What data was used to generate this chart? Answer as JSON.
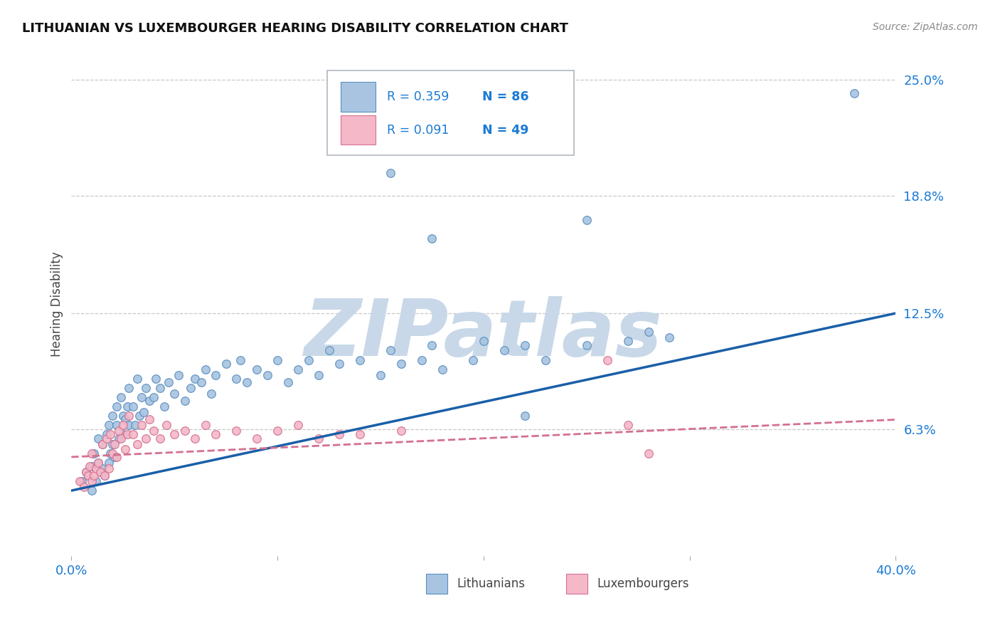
{
  "title": "LITHUANIAN VS LUXEMBOURGER HEARING DISABILITY CORRELATION CHART",
  "source": "Source: ZipAtlas.com",
  "ylabel": "Hearing Disability",
  "xlim": [
    0.0,
    0.4
  ],
  "ylim": [
    -0.005,
    0.265
  ],
  "xticks": [
    0.0,
    0.1,
    0.2,
    0.3,
    0.4
  ],
  "xticklabels": [
    "0.0%",
    "",
    "",
    "",
    "40.0%"
  ],
  "ytick_labels_right": [
    "25.0%",
    "18.8%",
    "12.5%",
    "6.3%"
  ],
  "ytick_vals_right": [
    0.25,
    0.188,
    0.125,
    0.063
  ],
  "grid_color": "#c8c8c8",
  "background_color": "#ffffff",
  "lithuanian_fill": "#a8c4e0",
  "lithuanian_edge": "#5b8fbf",
  "luxembourger_fill": "#f4b8c8",
  "luxembourger_edge": "#d47090",
  "lit_line_color": "#1a5fa8",
  "lux_line_color": "#d47090",
  "legend_color": "#1a7ad4",
  "legend_N_color": "#1a7ad4",
  "watermark_text": "ZIPatlas",
  "watermark_color": "#c8d8e8",
  "legend_R_lit": "R = 0.359",
  "legend_N_lit": "N = 86",
  "legend_R_lux": "R = 0.091",
  "legend_N_lux": "N = 49",
  "lit_x": [
    0.005,
    0.007,
    0.008,
    0.01,
    0.01,
    0.011,
    0.012,
    0.013,
    0.013,
    0.014,
    0.015,
    0.015,
    0.016,
    0.017,
    0.018,
    0.018,
    0.019,
    0.02,
    0.02,
    0.021,
    0.022,
    0.022,
    0.023,
    0.024,
    0.025,
    0.025,
    0.026,
    0.027,
    0.028,
    0.028,
    0.03,
    0.031,
    0.032,
    0.033,
    0.034,
    0.035,
    0.036,
    0.038,
    0.04,
    0.041,
    0.043,
    0.045,
    0.047,
    0.05,
    0.052,
    0.055,
    0.058,
    0.06,
    0.063,
    0.065,
    0.068,
    0.07,
    0.075,
    0.08,
    0.082,
    0.085,
    0.09,
    0.095,
    0.1,
    0.105,
    0.11,
    0.115,
    0.12,
    0.125,
    0.13,
    0.14,
    0.15,
    0.155,
    0.16,
    0.17,
    0.175,
    0.18,
    0.195,
    0.2,
    0.21,
    0.22,
    0.23,
    0.25,
    0.27,
    0.29,
    0.175,
    0.25,
    0.155,
    0.38,
    0.28,
    0.22
  ],
  "lit_y": [
    0.035,
    0.04,
    0.038,
    0.043,
    0.03,
    0.05,
    0.035,
    0.045,
    0.058,
    0.04,
    0.042,
    0.055,
    0.038,
    0.06,
    0.045,
    0.065,
    0.05,
    0.055,
    0.07,
    0.048,
    0.065,
    0.075,
    0.058,
    0.08,
    0.06,
    0.07,
    0.068,
    0.075,
    0.065,
    0.085,
    0.075,
    0.065,
    0.09,
    0.07,
    0.08,
    0.072,
    0.085,
    0.078,
    0.08,
    0.09,
    0.085,
    0.075,
    0.088,
    0.082,
    0.092,
    0.078,
    0.085,
    0.09,
    0.088,
    0.095,
    0.082,
    0.092,
    0.098,
    0.09,
    0.1,
    0.088,
    0.095,
    0.092,
    0.1,
    0.088,
    0.095,
    0.1,
    0.092,
    0.105,
    0.098,
    0.1,
    0.092,
    0.105,
    0.098,
    0.1,
    0.108,
    0.095,
    0.1,
    0.11,
    0.105,
    0.108,
    0.1,
    0.108,
    0.11,
    0.112,
    0.165,
    0.175,
    0.2,
    0.243,
    0.115,
    0.07
  ],
  "lux_x": [
    0.004,
    0.006,
    0.007,
    0.008,
    0.009,
    0.01,
    0.01,
    0.011,
    0.012,
    0.013,
    0.014,
    0.015,
    0.016,
    0.017,
    0.018,
    0.019,
    0.02,
    0.021,
    0.022,
    0.023,
    0.024,
    0.025,
    0.026,
    0.027,
    0.028,
    0.03,
    0.032,
    0.034,
    0.036,
    0.038,
    0.04,
    0.043,
    0.046,
    0.05,
    0.055,
    0.06,
    0.065,
    0.07,
    0.08,
    0.09,
    0.1,
    0.11,
    0.12,
    0.14,
    0.16,
    0.27,
    0.28,
    0.13,
    0.26
  ],
  "lux_y": [
    0.035,
    0.032,
    0.04,
    0.038,
    0.043,
    0.035,
    0.05,
    0.038,
    0.042,
    0.045,
    0.04,
    0.055,
    0.038,
    0.058,
    0.042,
    0.06,
    0.05,
    0.055,
    0.048,
    0.062,
    0.058,
    0.065,
    0.052,
    0.06,
    0.07,
    0.06,
    0.055,
    0.065,
    0.058,
    0.068,
    0.062,
    0.058,
    0.065,
    0.06,
    0.062,
    0.058,
    0.065,
    0.06,
    0.062,
    0.058,
    0.062,
    0.065,
    0.058,
    0.06,
    0.062,
    0.065,
    0.05,
    0.06,
    0.1
  ],
  "lit_trendline_x": [
    0.0,
    0.4
  ],
  "lit_trendline_y": [
    0.03,
    0.125
  ],
  "lux_trendline_x": [
    0.0,
    0.4
  ],
  "lux_trendline_y": [
    0.048,
    0.068
  ]
}
